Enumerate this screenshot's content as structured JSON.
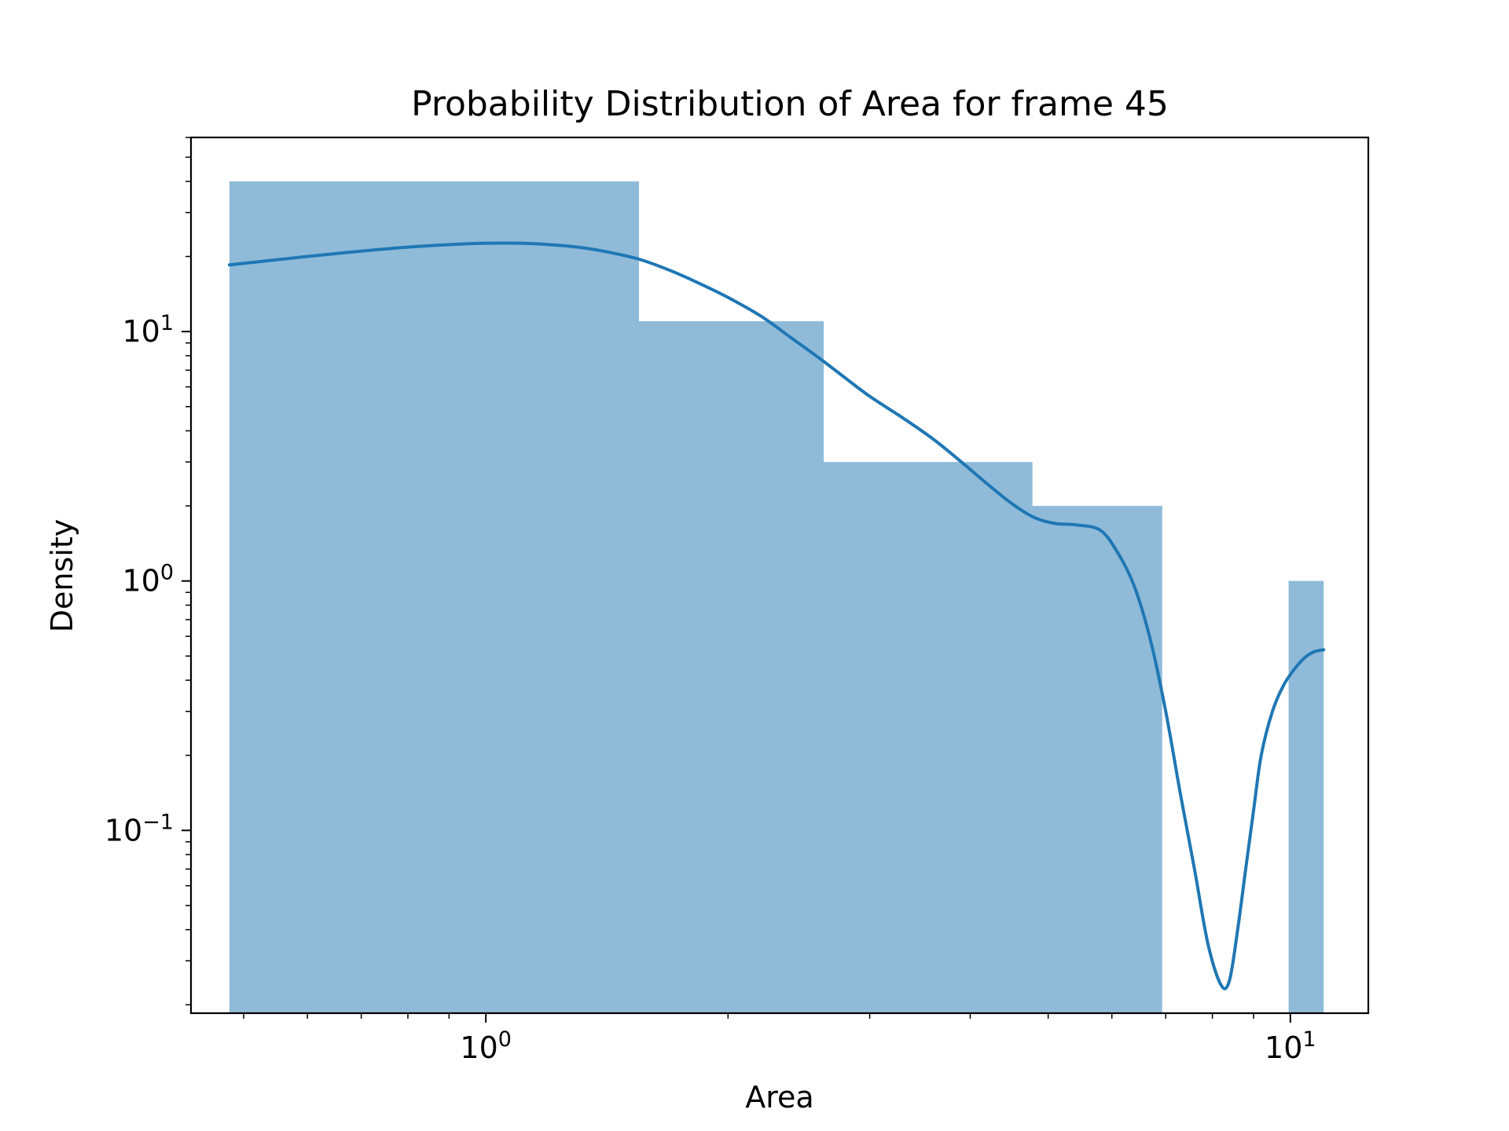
{
  "chart_data": {
    "type": "bar",
    "title": "Probability Distribution of Area for frame 45",
    "xlabel": "Area",
    "ylabel": "Density",
    "xscale": "log",
    "yscale": "log",
    "xlim": [
      0.43,
      12.5
    ],
    "ylim": [
      0.0185,
      60
    ],
    "grid": false,
    "legend": "none",
    "x_ticks": [
      {
        "value": 1,
        "base": "10",
        "exp": "0"
      },
      {
        "value": 10,
        "base": "10",
        "exp": "1"
      }
    ],
    "y_ticks": [
      {
        "value": 0.1,
        "base": "10",
        "exp": "−1"
      },
      {
        "value": 1,
        "base": "10",
        "exp": "0"
      },
      {
        "value": 10,
        "base": "10",
        "exp": "1"
      }
    ],
    "bars": [
      {
        "x0": 0.48,
        "x1": 1.55,
        "value": 40
      },
      {
        "x0": 1.55,
        "x1": 2.63,
        "value": 11
      },
      {
        "x0": 2.63,
        "x1": 4.78,
        "value": 3
      },
      {
        "x0": 4.78,
        "x1": 6.93,
        "value": 2
      },
      {
        "x0": 9.95,
        "x1": 11.0,
        "value": 1
      }
    ],
    "kde": {
      "x": [
        0.48,
        0.6,
        0.7,
        0.8,
        0.9,
        1.0,
        1.1,
        1.2,
        1.3,
        1.4,
        1.55,
        1.7,
        1.85,
        2.0,
        2.2,
        2.4,
        2.6,
        2.8,
        3.0,
        3.3,
        3.6,
        3.9,
        4.2,
        4.5,
        4.8,
        5.1,
        5.4,
        5.8,
        6.1,
        6.4,
        6.7,
        7.0,
        7.3,
        7.6,
        7.9,
        8.2,
        8.4,
        8.6,
        8.8,
        9.0,
        9.2,
        9.5,
        9.8,
        10.1,
        10.4,
        10.7,
        11.0
      ],
      "y": [
        18.5,
        20.0,
        21.0,
        21.8,
        22.3,
        22.6,
        22.6,
        22.3,
        21.8,
        21.0,
        19.5,
        17.5,
        15.5,
        13.7,
        11.5,
        9.4,
        7.8,
        6.5,
        5.5,
        4.5,
        3.7,
        3.0,
        2.45,
        2.05,
        1.8,
        1.7,
        1.68,
        1.6,
        1.3,
        0.95,
        0.58,
        0.3,
        0.14,
        0.07,
        0.035,
        0.024,
        0.025,
        0.04,
        0.07,
        0.12,
        0.2,
        0.3,
        0.38,
        0.44,
        0.49,
        0.52,
        0.53
      ]
    },
    "colors": {
      "bar_fill": "#1f77b4",
      "bar_alpha": 0.5,
      "line": "#1f77b4"
    }
  }
}
